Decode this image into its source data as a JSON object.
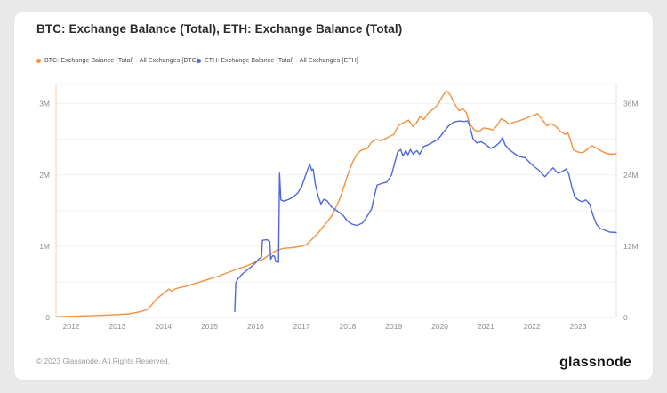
{
  "page": {
    "background_color": "#e9e9e9",
    "card_color": "#ffffff"
  },
  "header": {
    "title": "BTC: Exchange Balance (Total), ETH: Exchange Balance (Total)"
  },
  "legend": [
    {
      "label": "BTC: Exchange Balance (Total) - All Exchanges [BTC]",
      "color": "#f0923e"
    },
    {
      "label": "ETH: Exchange Balance (Total) - All Exchanges [ETH]",
      "color": "#5167d8"
    }
  ],
  "footer": {
    "copyright": "© 2023 Glassnode. All Rights Reserved.",
    "logo_text": "glassnode"
  },
  "chart_data": {
    "type": "line",
    "title": "BTC: Exchange Balance (Total), ETH: Exchange Balance (Total)",
    "grid": true,
    "legend_position": "top-left",
    "x_axis": {
      "range": [
        2011.67,
        2023.83
      ],
      "ticks": [
        2012,
        2013,
        2014,
        2015,
        2016,
        2017,
        2018,
        2019,
        2020,
        2021,
        2022,
        2023
      ]
    },
    "y_axis_left": {
      "unit": "BTC",
      "max": 3.283,
      "gridlines": [
        0.5,
        1,
        1.5,
        2,
        2.5,
        3
      ],
      "ticks": [
        {
          "value": 0,
          "label": "0"
        },
        {
          "value": 1,
          "label": "1M"
        },
        {
          "value": 2,
          "label": "2M"
        },
        {
          "value": 3,
          "label": "3M"
        }
      ],
      "axis_line_color": "#f6d3a9"
    },
    "y_axis_right": {
      "unit": "ETH",
      "max": 39.4,
      "ticks": [
        {
          "value": 0,
          "label": "0"
        },
        {
          "value": 12,
          "label": "12M"
        },
        {
          "value": 24,
          "label": "24M"
        },
        {
          "value": 36,
          "label": "36M"
        }
      ],
      "axis_line_color": "#dfe2f4"
    },
    "series": [
      {
        "id": "btc",
        "name": "BTC: Exchange Balance (Total) - All Exchanges [BTC]",
        "axis": "left",
        "color": "#f0923e",
        "points": [
          [
            2011.67,
            0.01
          ],
          [
            2012.2,
            0.02
          ],
          [
            2012.7,
            0.03
          ],
          [
            2013.0,
            0.04
          ],
          [
            2013.25,
            0.05
          ],
          [
            2013.5,
            0.08
          ],
          [
            2013.65,
            0.11
          ],
          [
            2013.75,
            0.18
          ],
          [
            2013.85,
            0.26
          ],
          [
            2013.95,
            0.31
          ],
          [
            2014.05,
            0.36
          ],
          [
            2014.12,
            0.4
          ],
          [
            2014.18,
            0.37
          ],
          [
            2014.25,
            0.4
          ],
          [
            2014.35,
            0.42
          ],
          [
            2014.5,
            0.44
          ],
          [
            2014.65,
            0.47
          ],
          [
            2014.8,
            0.5
          ],
          [
            2015.0,
            0.54
          ],
          [
            2015.2,
            0.58
          ],
          [
            2015.4,
            0.63
          ],
          [
            2015.6,
            0.68
          ],
          [
            2015.8,
            0.72
          ],
          [
            2016.0,
            0.78
          ],
          [
            2016.15,
            0.81
          ],
          [
            2016.3,
            0.88
          ],
          [
            2016.45,
            0.94
          ],
          [
            2016.6,
            0.97
          ],
          [
            2016.8,
            0.98
          ],
          [
            2017.0,
            1.0
          ],
          [
            2017.1,
            1.02
          ],
          [
            2017.2,
            1.08
          ],
          [
            2017.35,
            1.18
          ],
          [
            2017.5,
            1.3
          ],
          [
            2017.65,
            1.42
          ],
          [
            2017.8,
            1.62
          ],
          [
            2017.9,
            1.8
          ],
          [
            2018.0,
            2.0
          ],
          [
            2018.1,
            2.17
          ],
          [
            2018.2,
            2.29
          ],
          [
            2018.3,
            2.35
          ],
          [
            2018.42,
            2.37
          ],
          [
            2018.52,
            2.46
          ],
          [
            2018.62,
            2.5
          ],
          [
            2018.72,
            2.48
          ],
          [
            2018.85,
            2.52
          ],
          [
            2019.0,
            2.57
          ],
          [
            2019.1,
            2.69
          ],
          [
            2019.2,
            2.73
          ],
          [
            2019.32,
            2.77
          ],
          [
            2019.42,
            2.68
          ],
          [
            2019.5,
            2.74
          ],
          [
            2019.57,
            2.82
          ],
          [
            2019.65,
            2.78
          ],
          [
            2019.75,
            2.87
          ],
          [
            2019.87,
            2.93
          ],
          [
            2019.97,
            3.0
          ],
          [
            2020.07,
            3.12
          ],
          [
            2020.15,
            3.18
          ],
          [
            2020.22,
            3.13
          ],
          [
            2020.32,
            3.0
          ],
          [
            2020.42,
            2.9
          ],
          [
            2020.5,
            2.93
          ],
          [
            2020.57,
            2.88
          ],
          [
            2020.65,
            2.72
          ],
          [
            2020.75,
            2.63
          ],
          [
            2020.85,
            2.61
          ],
          [
            2020.95,
            2.66
          ],
          [
            2021.05,
            2.65
          ],
          [
            2021.15,
            2.63
          ],
          [
            2021.25,
            2.7
          ],
          [
            2021.33,
            2.79
          ],
          [
            2021.42,
            2.76
          ],
          [
            2021.5,
            2.71
          ],
          [
            2021.6,
            2.74
          ],
          [
            2021.72,
            2.76
          ],
          [
            2021.85,
            2.79
          ],
          [
            2021.95,
            2.82
          ],
          [
            2022.05,
            2.84
          ],
          [
            2022.12,
            2.86
          ],
          [
            2022.22,
            2.78
          ],
          [
            2022.32,
            2.69
          ],
          [
            2022.42,
            2.72
          ],
          [
            2022.52,
            2.68
          ],
          [
            2022.62,
            2.61
          ],
          [
            2022.72,
            2.57
          ],
          [
            2022.78,
            2.59
          ],
          [
            2022.85,
            2.46
          ],
          [
            2022.9,
            2.35
          ],
          [
            2023.0,
            2.32
          ],
          [
            2023.1,
            2.31
          ],
          [
            2023.2,
            2.36
          ],
          [
            2023.3,
            2.41
          ],
          [
            2023.42,
            2.37
          ],
          [
            2023.52,
            2.33
          ],
          [
            2023.62,
            2.3
          ],
          [
            2023.72,
            2.29
          ],
          [
            2023.83,
            2.3
          ]
        ]
      },
      {
        "id": "eth",
        "name": "ETH: Exchange Balance (Total) - All Exchanges [ETH]",
        "axis": "right",
        "color": "#5167d8",
        "points": [
          [
            2015.55,
            1.0
          ],
          [
            2015.57,
            5.8
          ],
          [
            2015.62,
            6.5
          ],
          [
            2015.7,
            7.2
          ],
          [
            2015.8,
            7.9
          ],
          [
            2015.9,
            8.5
          ],
          [
            2016.0,
            9.2
          ],
          [
            2016.08,
            9.9
          ],
          [
            2016.13,
            10.2
          ],
          [
            2016.15,
            13.0
          ],
          [
            2016.25,
            13.1
          ],
          [
            2016.31,
            12.8
          ],
          [
            2016.33,
            9.8
          ],
          [
            2016.37,
            10.4
          ],
          [
            2016.41,
            10.3
          ],
          [
            2016.44,
            9.4
          ],
          [
            2016.5,
            9.3
          ],
          [
            2016.52,
            24.3
          ],
          [
            2016.55,
            19.8
          ],
          [
            2016.62,
            19.6
          ],
          [
            2016.72,
            19.9
          ],
          [
            2016.82,
            20.3
          ],
          [
            2016.92,
            21.0
          ],
          [
            2017.0,
            22.0
          ],
          [
            2017.08,
            23.8
          ],
          [
            2017.15,
            25.3
          ],
          [
            2017.18,
            25.7
          ],
          [
            2017.22,
            24.8
          ],
          [
            2017.25,
            25.0
          ],
          [
            2017.3,
            22.3
          ],
          [
            2017.36,
            20.4
          ],
          [
            2017.42,
            19.1
          ],
          [
            2017.48,
            19.9
          ],
          [
            2017.55,
            19.7
          ],
          [
            2017.65,
            18.6
          ],
          [
            2017.78,
            17.9
          ],
          [
            2017.9,
            17.2
          ],
          [
            2018.0,
            16.2
          ],
          [
            2018.1,
            15.7
          ],
          [
            2018.2,
            15.5
          ],
          [
            2018.32,
            15.9
          ],
          [
            2018.42,
            17.0
          ],
          [
            2018.52,
            18.3
          ],
          [
            2018.58,
            20.5
          ],
          [
            2018.64,
            22.3
          ],
          [
            2018.75,
            22.6
          ],
          [
            2018.85,
            22.8
          ],
          [
            2018.95,
            24.0
          ],
          [
            2019.02,
            26.0
          ],
          [
            2019.08,
            27.8
          ],
          [
            2019.15,
            28.3
          ],
          [
            2019.2,
            27.2
          ],
          [
            2019.26,
            28.1
          ],
          [
            2019.31,
            27.4
          ],
          [
            2019.36,
            28.3
          ],
          [
            2019.42,
            27.5
          ],
          [
            2019.5,
            28.1
          ],
          [
            2019.56,
            27.5
          ],
          [
            2019.65,
            28.8
          ],
          [
            2019.75,
            29.1
          ],
          [
            2019.87,
            29.6
          ],
          [
            2019.97,
            30.1
          ],
          [
            2020.07,
            31.1
          ],
          [
            2020.18,
            32.2
          ],
          [
            2020.3,
            32.9
          ],
          [
            2020.42,
            33.1
          ],
          [
            2020.52,
            33.0
          ],
          [
            2020.6,
            33.1
          ],
          [
            2020.65,
            32.2
          ],
          [
            2020.72,
            30.1
          ],
          [
            2020.8,
            29.4
          ],
          [
            2020.9,
            29.6
          ],
          [
            2021.0,
            29.1
          ],
          [
            2021.1,
            28.5
          ],
          [
            2021.2,
            28.8
          ],
          [
            2021.3,
            29.5
          ],
          [
            2021.36,
            30.3
          ],
          [
            2021.42,
            29.0
          ],
          [
            2021.5,
            28.3
          ],
          [
            2021.6,
            27.7
          ],
          [
            2021.72,
            27.1
          ],
          [
            2021.85,
            26.9
          ],
          [
            2021.95,
            26.1
          ],
          [
            2022.05,
            25.4
          ],
          [
            2022.15,
            24.8
          ],
          [
            2022.22,
            24.2
          ],
          [
            2022.28,
            23.7
          ],
          [
            2022.38,
            24.6
          ],
          [
            2022.46,
            25.2
          ],
          [
            2022.56,
            24.3
          ],
          [
            2022.66,
            24.6
          ],
          [
            2022.74,
            25.0
          ],
          [
            2022.8,
            24.1
          ],
          [
            2022.87,
            21.8
          ],
          [
            2022.93,
            20.3
          ],
          [
            2023.0,
            19.8
          ],
          [
            2023.08,
            19.5
          ],
          [
            2023.17,
            19.8
          ],
          [
            2023.25,
            19.1
          ],
          [
            2023.32,
            17.3
          ],
          [
            2023.4,
            15.7
          ],
          [
            2023.48,
            15.0
          ],
          [
            2023.58,
            14.7
          ],
          [
            2023.68,
            14.4
          ],
          [
            2023.83,
            14.3
          ]
        ]
      }
    ]
  }
}
